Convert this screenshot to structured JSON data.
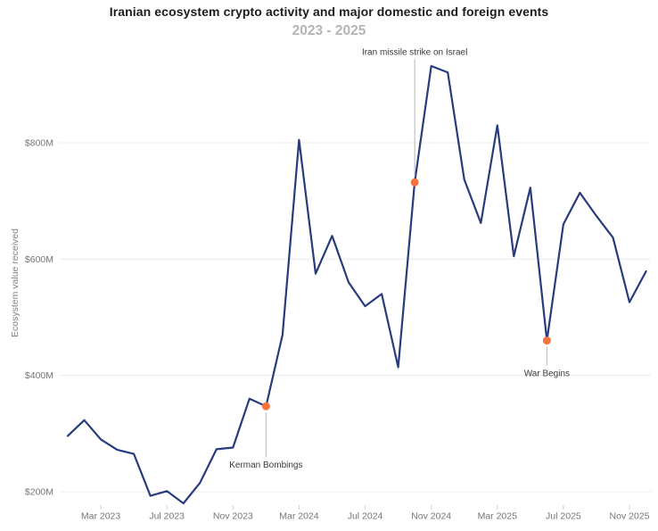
{
  "chart": {
    "title": "Iranian ecosystem crypto activity and major domestic and foreign events",
    "subtitle": "2023 - 2025",
    "ylabel": "Ecosystem value received"
  },
  "chart_data": {
    "type": "line",
    "title": "Iranian ecosystem crypto activity and major domestic and foreign events",
    "subtitle": "2023 - 2025",
    "xlabel": "",
    "ylabel": "Ecosystem value received",
    "unit": "USD millions",
    "x": [
      "Jan 2023",
      "Feb 2023",
      "Mar 2023",
      "Apr 2023",
      "May 2023",
      "Jun 2023",
      "Jul 2023",
      "Aug 2023",
      "Sep 2023",
      "Oct 2023",
      "Nov 2023",
      "Dec 2023",
      "Jan 2024",
      "Feb 2024",
      "Mar 2024",
      "Apr 2024",
      "May 2024",
      "Jun 2024",
      "Jul 2024",
      "Aug 2024",
      "Sep 2024",
      "Oct 2024",
      "Nov 2024",
      "Dec 2024",
      "Jan 2025",
      "Feb 2025",
      "Mar 2025",
      "Apr 2025",
      "May 2025",
      "Jun 2025",
      "Jul 2025",
      "Aug 2025",
      "Sep 2025",
      "Oct 2025",
      "Nov 2025",
      "Dec 2025"
    ],
    "values": [
      296,
      323,
      290,
      272,
      265,
      193,
      201,
      180,
      215,
      273,
      276,
      360,
      347,
      470,
      805,
      575,
      640,
      560,
      519,
      540,
      414,
      732,
      932,
      921,
      737,
      662,
      830,
      605,
      723,
      460,
      660,
      714,
      674,
      637,
      526,
      579
    ],
    "ylim": [
      150,
      960
    ],
    "y_ticks": [
      200,
      400,
      600,
      800
    ],
    "y_tick_labels": [
      "$200M",
      "$400M",
      "$600M",
      "$800M"
    ],
    "x_tick_labels": [
      "Mar 2023",
      "Jul 2023",
      "Nov 2023",
      "Mar 2024",
      "Jul 2024",
      "Nov 2024",
      "Mar 2025",
      "Jul 2025",
      "Nov 2025"
    ],
    "grid": "horizontal",
    "legend": "none",
    "annotations": [
      {
        "label": "Kerman Bombings",
        "x": "Jan 2024",
        "value": 347,
        "label_position": "below",
        "label_dy": 69
      },
      {
        "label": "Iran missile strike on Israel",
        "x": "Oct 2024",
        "value": 732,
        "label_position": "above",
        "label_dy": -143
      },
      {
        "label": "War Begins",
        "x": "Jun 2025",
        "value": 460,
        "label_position": "below",
        "label_dy": 40
      }
    ],
    "colors": {
      "line": "#263c7c",
      "marker": "#f4743b",
      "gridline": "#ececec",
      "axis_text": "#757575",
      "annotation_text": "#3a3a3a",
      "annotation_connector": "#b8b8b8"
    }
  }
}
